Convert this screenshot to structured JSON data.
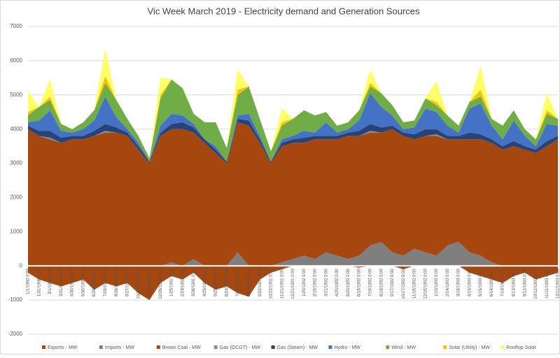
{
  "chart_data": {
    "type": "stacked-area",
    "title": "Vic Week March 2019 - Electricity demand and Generation Sources",
    "categories": [
      "1/1/1900 0:00",
      "1/31/1900 0:00",
      "3/1/1900 0:00",
      "3/31/1900 0:00",
      "4/30/1900 0:00",
      "5/30/1900 0:00",
      "6/29/1900 0:00",
      "7/29/1900 0:00",
      "8/28/1900 0:00",
      "9/27/1900 0:00",
      "10/27/1900 0:00",
      "11/26/1900 0:00",
      "12/26/1900 0:00",
      "1/25/1901 0:00",
      "2/24/1901 0:00",
      "3/26/1901 0:00",
      "4/25/1901 0:00",
      "5/25/1901 0:00",
      "6/24/1901 0:00",
      "7/24/1901 0:00",
      "8/23/1901 0:00",
      "9/22/1901 0:00",
      "10/22/1901 0:00",
      "11/21/1901 0:00",
      "12/21/1901 0:00",
      "1/20/1902 0:00",
      "2/19/1902 0:00",
      "3/21/1902 0:00",
      "4/20/1902 0:00",
      "5/20/1902 0:00",
      "6/19/1902 0:00",
      "7/19/1902 0:00",
      "8/18/1902 0:00",
      "9/17/1902 0:00",
      "10/17/1902 0:00",
      "11/16/1902 0:00",
      "12/16/1902 0:00",
      "1/15/1903 0:00",
      "2/14/1903 0:00",
      "3/16/1903 0:00",
      "4/15/1903 0:00",
      "5/15/1903 0:00",
      "6/14/1903 0:00",
      "7/14/1903 0:00",
      "8/13/1903 0:00",
      "9/12/1903 0:00",
      "10/12/1903 0:00",
      "11/11/1903 0:00",
      "12/11/1903 0:00"
    ],
    "series": [
      {
        "name": "Exports - MW",
        "color": "#a5470f",
        "values": [
          -200,
          -400,
          -500,
          -600,
          -500,
          -400,
          -700,
          -500,
          -600,
          -500,
          -800,
          -1000,
          -500,
          -300,
          -400,
          -200,
          -500,
          -700,
          -600,
          -800,
          -900,
          -400,
          -200,
          -100,
          0,
          0,
          0,
          0,
          0,
          0,
          -50,
          0,
          0,
          0,
          -100,
          0,
          0,
          0,
          0,
          0,
          -200,
          -300,
          -400,
          -500,
          -300,
          -200,
          -400,
          -300,
          -200
        ]
      },
      {
        "name": "Imports - MW",
        "color": "#7f7f7f",
        "values": [
          0,
          0,
          0,
          0,
          0,
          0,
          0,
          0,
          0,
          0,
          0,
          0,
          0,
          100,
          0,
          200,
          0,
          0,
          0,
          400,
          0,
          0,
          0,
          100,
          200,
          300,
          200,
          400,
          300,
          200,
          300,
          600,
          700,
          400,
          300,
          500,
          400,
          300,
          600,
          700,
          400,
          300,
          100,
          0,
          0,
          0,
          0,
          0,
          0
        ]
      },
      {
        "name": "Brown Coal - MW",
        "color": "#a5470f",
        "values": [
          4000,
          3800,
          3700,
          3600,
          3700,
          3700,
          3800,
          3900,
          3900,
          3800,
          3400,
          3000,
          3800,
          3900,
          4000,
          3700,
          3600,
          3300,
          3000,
          3800,
          4100,
          3600,
          3000,
          3400,
          3400,
          3300,
          3500,
          3300,
          3400,
          3600,
          3500,
          3300,
          3200,
          3600,
          3500,
          3200,
          3400,
          3500,
          3100,
          3000,
          3300,
          3400,
          3500,
          3400,
          3500,
          3400,
          3300,
          3500,
          3700
        ]
      },
      {
        "name": "Gas (OCGT) - MW",
        "color": "#8c8c8c",
        "values": [
          0,
          0,
          50,
          0,
          0,
          0,
          0,
          50,
          0,
          0,
          0,
          0,
          0,
          0,
          0,
          0,
          0,
          0,
          0,
          0,
          0,
          0,
          0,
          0,
          0,
          0,
          0,
          0,
          0,
          0,
          0,
          50,
          0,
          0,
          0,
          0,
          0,
          50,
          0,
          0,
          0,
          0,
          0,
          0,
          0,
          0,
          0,
          0,
          0
        ]
      },
      {
        "name": "Gas (Steam) - MW",
        "color": "#264478",
        "values": [
          100,
          150,
          200,
          150,
          100,
          100,
          150,
          200,
          150,
          100,
          100,
          50,
          100,
          150,
          200,
          150,
          100,
          100,
          50,
          100,
          150,
          100,
          50,
          100,
          100,
          150,
          100,
          100,
          100,
          100,
          150,
          200,
          150,
          100,
          100,
          150,
          200,
          150,
          100,
          100,
          200,
          150,
          100,
          100,
          150,
          100,
          100,
          150,
          100
        ]
      },
      {
        "name": "Hydro - MW",
        "color": "#4472c4",
        "values": [
          100,
          300,
          600,
          200,
          100,
          200,
          300,
          800,
          300,
          100,
          100,
          0,
          200,
          300,
          200,
          100,
          0,
          100,
          0,
          100,
          200,
          100,
          0,
          100,
          100,
          200,
          100,
          400,
          100,
          100,
          300,
          900,
          600,
          300,
          100,
          200,
          600,
          500,
          300,
          100,
          700,
          900,
          400,
          200,
          600,
          300,
          100,
          500,
          300
        ]
      },
      {
        "name": "Wind - MW",
        "color": "#70ad47",
        "values": [
          200,
          400,
          300,
          200,
          100,
          200,
          300,
          400,
          500,
          300,
          200,
          100,
          800,
          1000,
          800,
          300,
          500,
          700,
          400,
          600,
          800,
          500,
          300,
          400,
          500,
          600,
          500,
          300,
          200,
          200,
          300,
          200,
          400,
          300,
          200,
          200,
          300,
          200,
          300,
          200,
          200,
          200,
          200,
          400,
          300,
          200,
          200,
          300,
          200
        ]
      },
      {
        "name": "Solar (Utility) - MW",
        "color": "#ffc000",
        "values": [
          100,
          0,
          100,
          0,
          0,
          0,
          0,
          200,
          0,
          0,
          0,
          0,
          100,
          0,
          0,
          0,
          0,
          0,
          0,
          150,
          0,
          0,
          0,
          100,
          0,
          0,
          0,
          0,
          0,
          0,
          0,
          100,
          0,
          0,
          0,
          0,
          0,
          100,
          0,
          0,
          0,
          200,
          0,
          0,
          0,
          0,
          0,
          100,
          0
        ]
      },
      {
        "name": "Rooftop Solar",
        "color": "#ffff66",
        "values": [
          600,
          0,
          500,
          0,
          0,
          0,
          0,
          800,
          0,
          0,
          0,
          0,
          500,
          0,
          0,
          0,
          0,
          0,
          0,
          600,
          0,
          0,
          0,
          400,
          0,
          0,
          0,
          0,
          0,
          0,
          0,
          400,
          0,
          0,
          0,
          0,
          0,
          600,
          0,
          0,
          0,
          700,
          0,
          0,
          0,
          0,
          0,
          500,
          0
        ]
      }
    ],
    "ylim": [
      -2000,
      7000
    ],
    "yticks": [
      -2000,
      -1000,
      0,
      1000,
      2000,
      3000,
      4000,
      5000,
      6000,
      7000
    ],
    "grid": true,
    "legend": "bottom"
  }
}
